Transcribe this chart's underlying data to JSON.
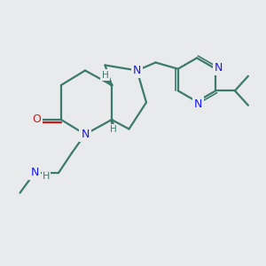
{
  "background_color": "#e8eaec",
  "bond_color": "#3d7a6e",
  "nitrogen_color": "#1a1aee",
  "oxygen_color": "#cc1a1a",
  "stereo_color": "#3d7a6e",
  "bond_width": 1.6,
  "figsize": [
    3.0,
    3.0
  ],
  "dpi": 100,
  "xlim": [
    0,
    10
  ],
  "ylim": [
    0,
    10
  ]
}
